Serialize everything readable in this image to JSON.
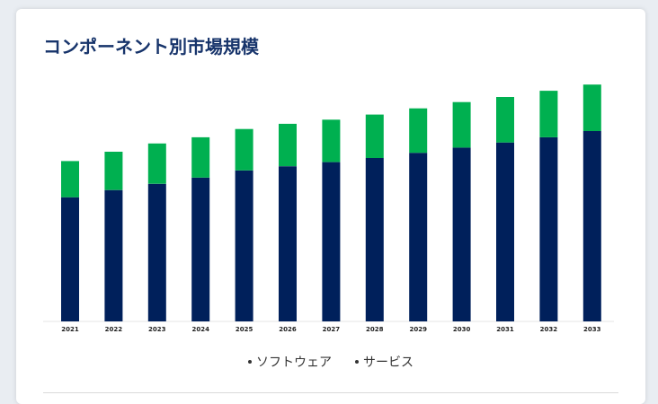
{
  "chart_data": {
    "type": "bar",
    "stacked": true,
    "title": "コンポーネント別市場規模",
    "categories": [
      "2021",
      "2022",
      "2023",
      "2024",
      "2025",
      "2026",
      "2027",
      "2028",
      "2029",
      "2030",
      "2031",
      "2032",
      "2033"
    ],
    "series": [
      {
        "name": "ソフトウェア",
        "color": "#00205b",
        "values": [
          120,
          127,
          133,
          139,
          146,
          150,
          154,
          158,
          163,
          168,
          173,
          178,
          184
        ]
      },
      {
        "name": "サービス",
        "color": "#00b050",
        "values": [
          35,
          37,
          39,
          39,
          40,
          41,
          41,
          42,
          43,
          44,
          44,
          45,
          45
        ]
      }
    ],
    "ylim": [
      0,
      230
    ],
    "grid": false,
    "legend": "bottom"
  }
}
